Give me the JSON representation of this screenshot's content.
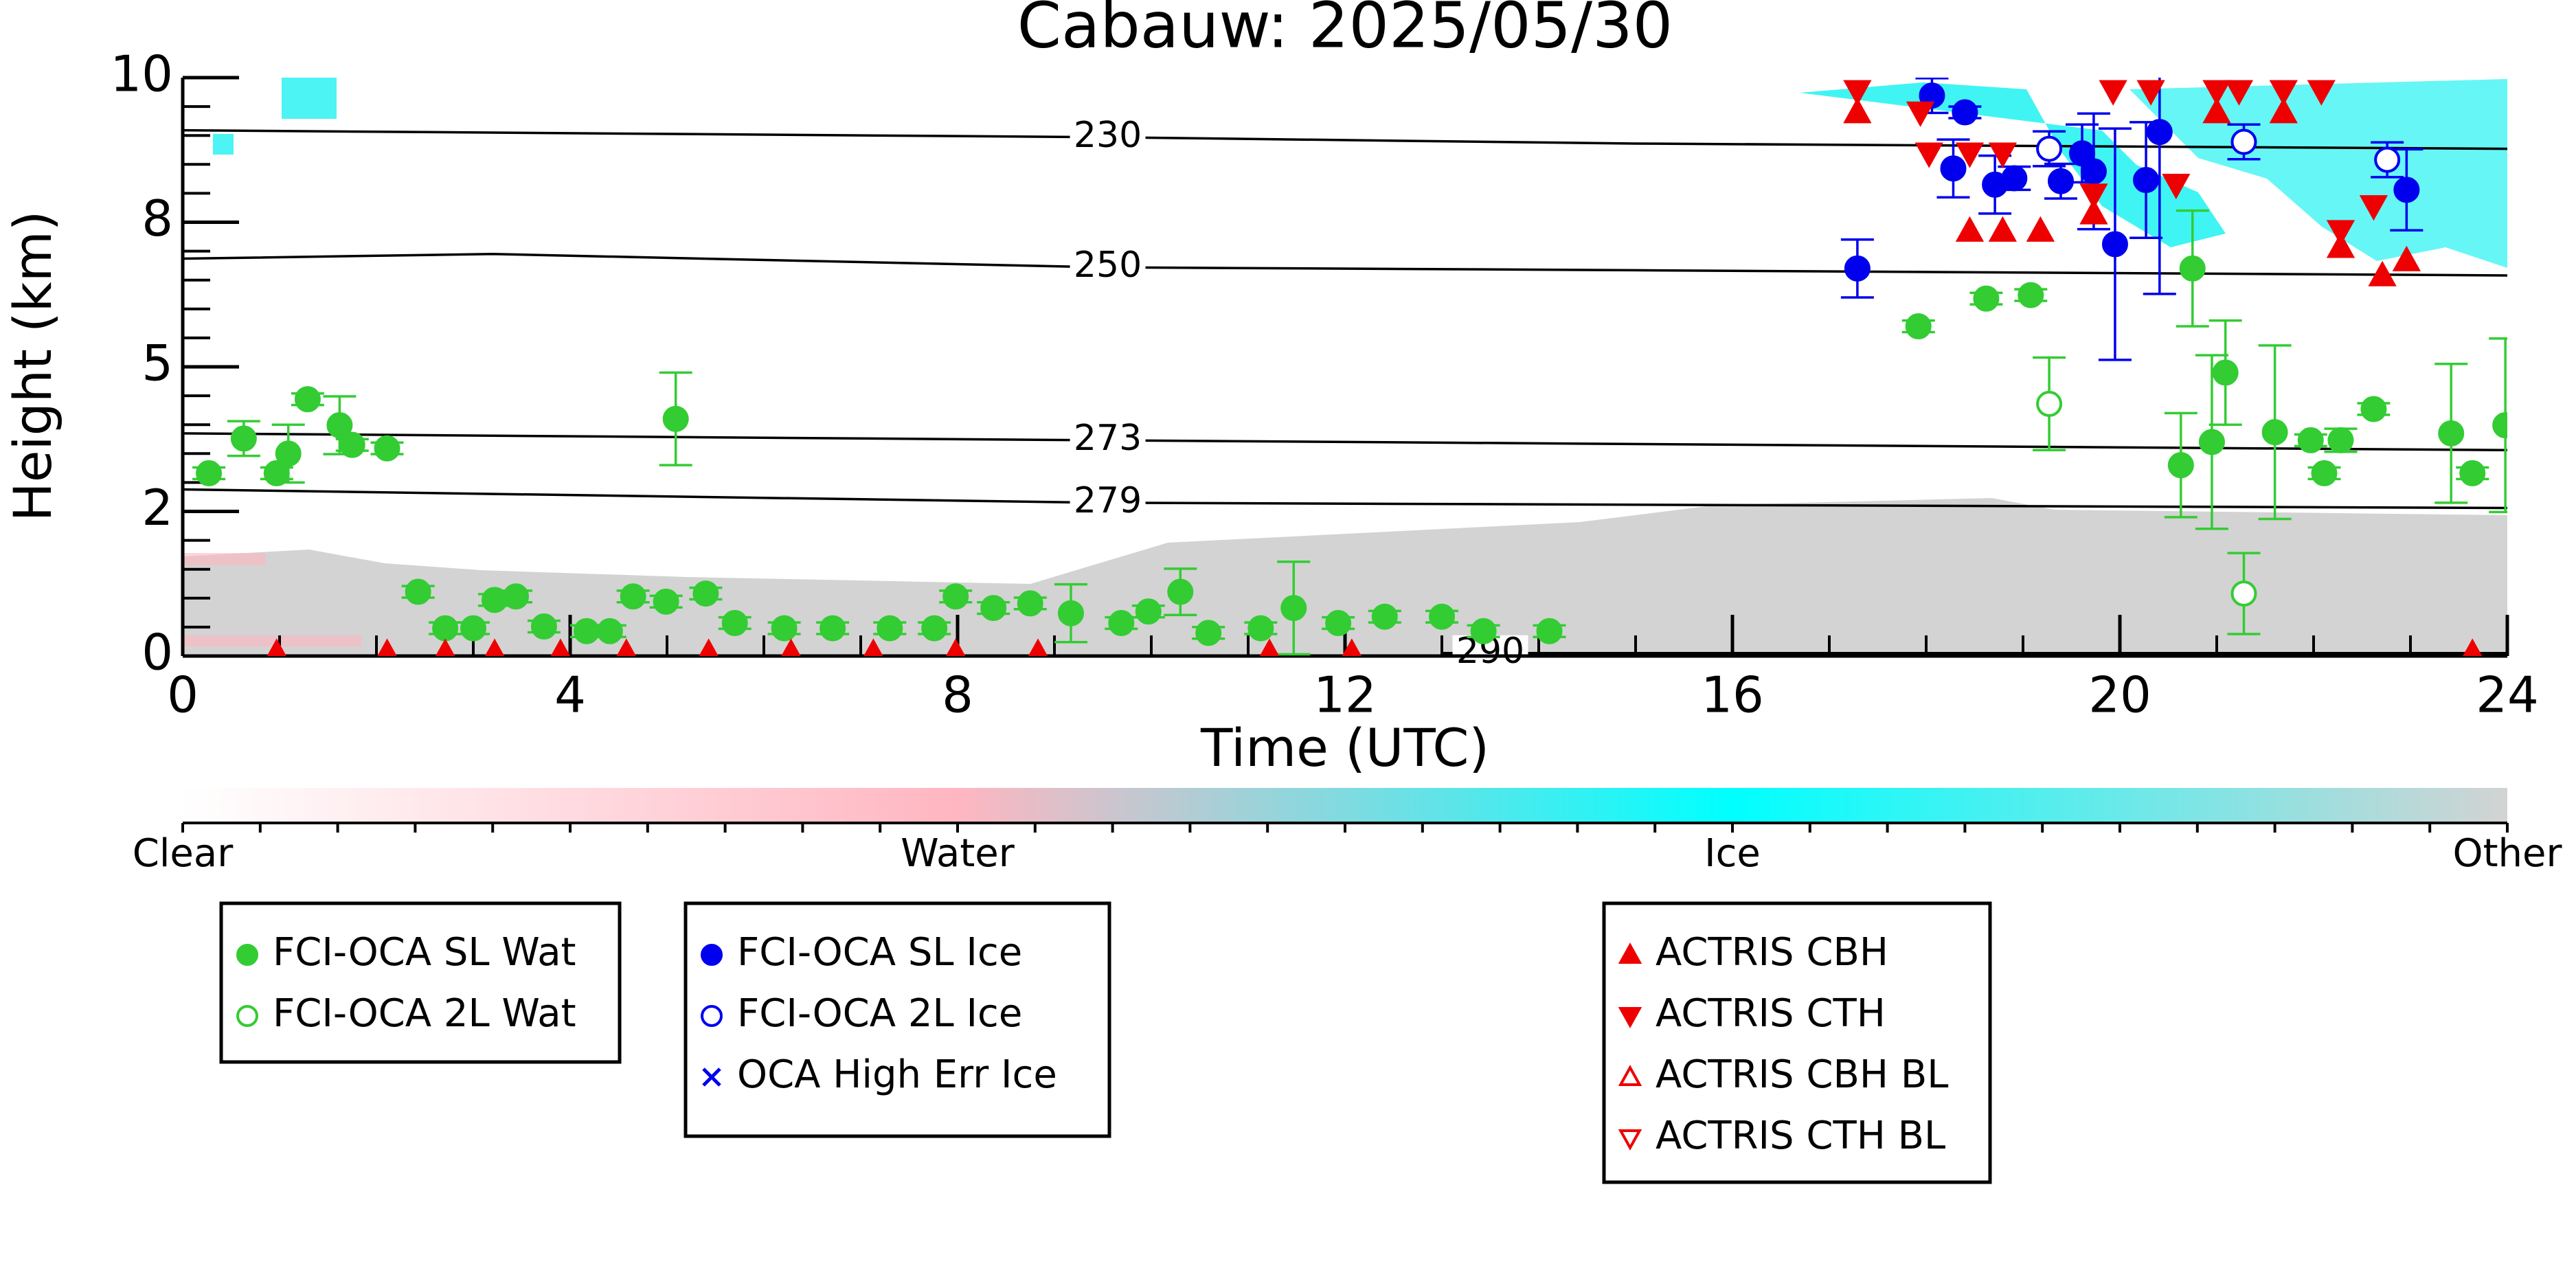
{
  "chart_data": {
    "type": "scatter",
    "title": "Cabauw: 2025/05/30",
    "xlabel": "Time (UTC)",
    "ylabel": "Height (km)",
    "xlim": [
      0,
      24
    ],
    "xticks": [
      0,
      4,
      8,
      12,
      16,
      20,
      24
    ],
    "ylim": [
      0,
      10
    ],
    "yticks": [
      0,
      {
        "value": 2.5,
        "label": "2"
      },
      5,
      {
        "value": 7.5,
        "label": "8"
      },
      10
    ],
    "colorbar_labels": [
      "Clear",
      "Water",
      "Ice",
      "Other"
    ],
    "contours": [
      {
        "level": 230,
        "x": [
          0,
          9.5,
          15,
          24
        ],
        "y": [
          9.09,
          8.97,
          8.86,
          8.77
        ]
      },
      {
        "level": 250,
        "x": [
          0,
          3.2,
          9.5,
          15,
          24
        ],
        "y": [
          6.87,
          6.95,
          6.72,
          6.67,
          6.58
        ]
      },
      {
        "level": 273,
        "x": [
          0,
          9.5,
          24
        ],
        "y": [
          3.85,
          3.73,
          3.56
        ]
      },
      {
        "level": 279,
        "x": [
          0,
          9.5,
          24
        ],
        "y": [
          2.88,
          2.65,
          2.56
        ]
      },
      {
        "level": 290,
        "x": [
          13,
          24
        ],
        "y": [
          0.05,
          0.05
        ]
      }
    ],
    "series": [
      {
        "name": "FCI-OCA SL Wat",
        "color": "#33cc33",
        "marker": "circle",
        "filled": true,
        "x": [
          0.27,
          0.63,
          0.97,
          1.09,
          1.29,
          1.62,
          1.75,
          2.11,
          2.43,
          2.71,
          3.0,
          3.22,
          3.44,
          3.73,
          4.17,
          4.41,
          4.65,
          4.99,
          5.09,
          5.4,
          5.7,
          6.21,
          6.71,
          7.3,
          7.76,
          7.98,
          8.37,
          8.75,
          9.17,
          9.69,
          9.97,
          10.3,
          10.59,
          11.13,
          11.47,
          11.93,
          12.41,
          13.0,
          13.43,
          14.11,
          17.92,
          18.62,
          19.08,
          20.63,
          20.75,
          20.95,
          21.09,
          21.6,
          21.97,
          22.11,
          22.28,
          22.62,
          23.42,
          23.64,
          23.98
        ],
        "y": [
          3.16,
          3.76,
          3.16,
          3.5,
          4.44,
          3.99,
          3.65,
          3.59,
          1.11,
          0.48,
          0.48,
          0.97,
          1.03,
          0.51,
          0.43,
          0.43,
          1.03,
          0.94,
          4.1,
          1.08,
          0.57,
          0.48,
          0.48,
          0.48,
          0.48,
          1.03,
          0.83,
          0.91,
          0.74,
          0.57,
          0.77,
          1.11,
          0.4,
          0.48,
          0.83,
          0.57,
          0.68,
          0.68,
          0.43,
          0.43,
          5.7,
          6.18,
          6.24,
          3.3,
          6.7,
          3.7,
          4.9,
          3.87,
          3.73,
          3.16,
          3.73,
          4.27,
          3.85,
          3.16,
          3.99
        ],
        "err": [
          0.1,
          0.3,
          0.1,
          0.5,
          0.1,
          0.5,
          0.1,
          0.1,
          0.1,
          0.1,
          0.1,
          0.1,
          0.1,
          0.1,
          0.1,
          0.1,
          0.1,
          0.1,
          0.8,
          0.1,
          0.1,
          0.1,
          0.1,
          0.1,
          0.1,
          0.1,
          0.1,
          0.1,
          0.5,
          0.1,
          0.1,
          0.4,
          0.1,
          0.1,
          0.8,
          0.1,
          0.1,
          0.1,
          0.1,
          0.1,
          0.1,
          0.1,
          0.1,
          0.9,
          1.0,
          1.5,
          0.9,
          1.5,
          0.1,
          0.1,
          0.2,
          0.1,
          1.2,
          0.1,
          1.5
        ]
      },
      {
        "name": "FCI-OCA 2L Wat",
        "color": "#33cc33",
        "marker": "circle",
        "filled": false,
        "x": [
          19.27,
          21.28
        ],
        "y": [
          4.36,
          1.08
        ],
        "err": [
          0.8,
          0.7
        ]
      },
      {
        "name": "FCI-OCA SL Ice",
        "color": "#0000ee",
        "marker": "circle",
        "filled": true,
        "x": [
          17.29,
          18.06,
          18.28,
          18.4,
          18.71,
          18.91,
          19.39,
          19.61,
          19.73,
          19.95,
          20.27,
          20.41,
          22.96
        ],
        "y": [
          6.7,
          9.69,
          8.43,
          9.4,
          8.15,
          8.26,
          8.21,
          8.69,
          8.38,
          7.12,
          8.23,
          9.06,
          8.06
        ],
        "err": [
          0.5,
          0.3,
          0.5,
          0.1,
          0.5,
          0.2,
          0.3,
          0.5,
          1.0,
          2.0,
          1.0,
          2.8,
          0.7
        ]
      },
      {
        "name": "FCI-OCA 2L Ice",
        "color": "#0000ee",
        "marker": "circle",
        "filled": false,
        "x": [
          19.27,
          21.28,
          22.76
        ],
        "y": [
          8.77,
          8.89,
          8.58
        ],
        "err": [
          0.3,
          0.3,
          0.3
        ]
      },
      {
        "name": "OCA High Err Ice",
        "color": "#0000ee",
        "marker": "x",
        "filled": true,
        "x": [],
        "y": [],
        "err": []
      },
      {
        "name": "ACTRIS CBH",
        "color": "#ee0000",
        "marker": "triangle-up",
        "filled": true,
        "x": [
          17.29,
          21.0,
          21.69,
          18.45,
          18.79,
          19.18,
          19.73,
          22.28,
          22.71,
          22.96,
          0.97,
          2.11,
          2.71,
          3.22,
          3.9,
          4.58,
          5.43,
          6.28,
          7.13,
          7.98,
          8.83,
          11.22,
          12.07,
          23.64
        ],
        "y": [
          9.4,
          9.4,
          9.4,
          7.35,
          7.35,
          7.35,
          7.65,
          7.07,
          6.58,
          6.84,
          0.05,
          0.05,
          0.05,
          0.05,
          0.05,
          0.05,
          0.05,
          0.05,
          0.05,
          0.05,
          0.05,
          0.05,
          0.05,
          0.05
        ]
      },
      {
        "name": "ACTRIS CTH",
        "color": "#ee0000",
        "marker": "triangle-down",
        "filled": true,
        "x": [
          17.29,
          17.94,
          19.93,
          20.32,
          21.0,
          21.23,
          21.69,
          22.08,
          18.03,
          18.45,
          18.79,
          19.73,
          20.58,
          22.28,
          22.62
        ],
        "y": [
          9.77,
          9.4,
          9.77,
          9.77,
          9.77,
          9.77,
          9.77,
          9.77,
          8.69,
          8.69,
          8.69,
          7.98,
          8.15,
          7.35,
          7.78
        ]
      },
      {
        "name": "ACTRIS CBH BL",
        "color": "#ee0000",
        "marker": "triangle-up",
        "filled": false,
        "x": [],
        "y": []
      },
      {
        "name": "ACTRIS CTH BL",
        "color": "#ee0000",
        "marker": "triangle-down",
        "filled": false,
        "x": [],
        "y": []
      }
    ]
  }
}
